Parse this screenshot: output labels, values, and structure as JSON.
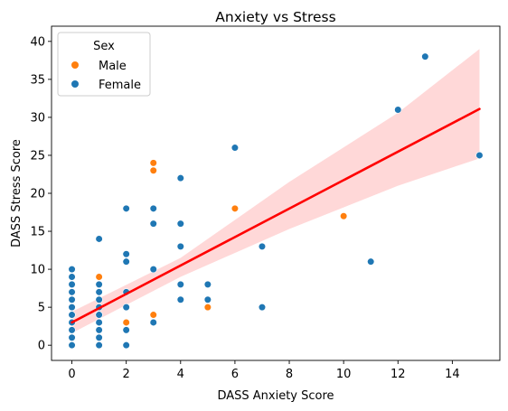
{
  "chart_data": {
    "type": "scatter",
    "title": "Anxiety vs Stress",
    "xlabel": "DASS Anxiety Score",
    "ylabel": "DASS Stress Score",
    "xlim": [
      -0.75,
      15.75
    ],
    "ylim": [
      -2,
      42
    ],
    "xticks": [
      0,
      2,
      4,
      6,
      8,
      10,
      12,
      14
    ],
    "yticks": [
      0,
      5,
      10,
      15,
      20,
      25,
      30,
      35,
      40
    ],
    "grid": false,
    "legend": {
      "title": "Sex",
      "placement": "top-left"
    },
    "series": [
      {
        "name": "Male",
        "color": "#ff7f0e",
        "points": [
          [
            0,
            0
          ],
          [
            0,
            5
          ],
          [
            0,
            8
          ],
          [
            1,
            4
          ],
          [
            1,
            9
          ],
          [
            2,
            3
          ],
          [
            3,
            4
          ],
          [
            3,
            23
          ],
          [
            3,
            24
          ],
          [
            5,
            5
          ],
          [
            6,
            18
          ],
          [
            10,
            17
          ]
        ]
      },
      {
        "name": "Female",
        "color": "#1f77b4",
        "points": [
          [
            0,
            0
          ],
          [
            0,
            1
          ],
          [
            0,
            2
          ],
          [
            0,
            3
          ],
          [
            0,
            4
          ],
          [
            0,
            5
          ],
          [
            0,
            6
          ],
          [
            0,
            7
          ],
          [
            0,
            8
          ],
          [
            0,
            9
          ],
          [
            0,
            10
          ],
          [
            1,
            0
          ],
          [
            1,
            1
          ],
          [
            1,
            2
          ],
          [
            1,
            3
          ],
          [
            1,
            4
          ],
          [
            1,
            5
          ],
          [
            1,
            6
          ],
          [
            1,
            7
          ],
          [
            1,
            8
          ],
          [
            1,
            14
          ],
          [
            2,
            0
          ],
          [
            2,
            2
          ],
          [
            2,
            5
          ],
          [
            2,
            7
          ],
          [
            2,
            11
          ],
          [
            2,
            12
          ],
          [
            2,
            18
          ],
          [
            3,
            3
          ],
          [
            3,
            10
          ],
          [
            3,
            16
          ],
          [
            3,
            18
          ],
          [
            4,
            6
          ],
          [
            4,
            8
          ],
          [
            4,
            13
          ],
          [
            4,
            16
          ],
          [
            4,
            22
          ],
          [
            5,
            6
          ],
          [
            5,
            8
          ],
          [
            6,
            26
          ],
          [
            7,
            5
          ],
          [
            7,
            13
          ],
          [
            11,
            11
          ],
          [
            12,
            31
          ],
          [
            13,
            38
          ],
          [
            15,
            25
          ]
        ]
      }
    ],
    "regression": {
      "color": "#ff0000",
      "band_color": "#ffd6d6",
      "line": [
        [
          0,
          3.0
        ],
        [
          15,
          31.1
        ]
      ],
      "band_upper": [
        [
          0,
          4.4
        ],
        [
          4,
          11.5
        ],
        [
          8,
          21.5
        ],
        [
          12,
          30.6
        ],
        [
          15,
          39.0
        ]
      ],
      "band_lower": [
        [
          0,
          1.6
        ],
        [
          4,
          9.0
        ],
        [
          8,
          15.3
        ],
        [
          12,
          21.0
        ],
        [
          15,
          24.6
        ]
      ]
    }
  }
}
